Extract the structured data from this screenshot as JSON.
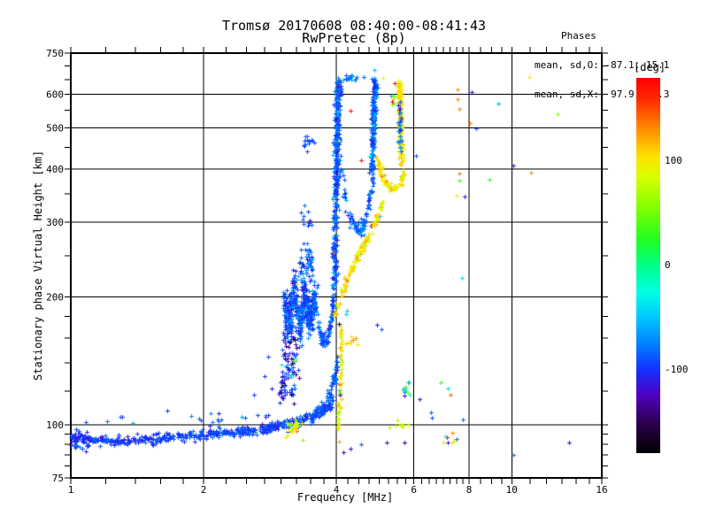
{
  "figure": {
    "title": "Tromsø 20170608 08:40:00-08:41:43",
    "subtitle": "RwPretec (8p)",
    "stats": {
      "heading": "Phases",
      "o_mode": "mean, sd,O: -87.1, 15.1",
      "x_mode": "mean, sd,X:  97.9, 20.3"
    },
    "colors": {
      "background": "#ffffff",
      "frame": "#000000",
      "text": "#000000"
    }
  },
  "chart_data": {
    "type": "scatter",
    "title": "Tromsø 20170608 08:40:00-08:41:43",
    "subtitle": "RwPretec (8p)",
    "xlabel": "Frequency [MHz]",
    "ylabel": "Stationary phase Virtual Height [km]",
    "x_scale": "log",
    "y_scale": "log",
    "xlim": [
      1,
      16
    ],
    "ylim": [
      75,
      750
    ],
    "x_major_ticks": [
      1,
      2,
      4,
      6,
      8,
      10,
      16
    ],
    "x_minor_ticks": [
      1.2,
      1.4,
      1.6,
      1.8,
      2.25,
      2.5,
      2.75,
      3,
      3.25,
      3.5,
      3.75,
      4.25,
      4.5,
      4.75,
      5,
      5.25,
      5.5,
      5.75,
      6.25,
      6.5,
      6.75,
      7,
      7.25,
      7.5,
      7.75,
      8.5,
      9,
      9.5,
      11,
      12,
      13,
      14,
      15
    ],
    "x_gridlines": [
      2,
      4,
      6,
      8,
      10
    ],
    "y_major_ticks": [
      75,
      100,
      200,
      300,
      400,
      500,
      600,
      750
    ],
    "y_minor_ticks": [
      80,
      85,
      90,
      95,
      120,
      140,
      160,
      180,
      250,
      350,
      450,
      550,
      650,
      700
    ],
    "y_gridlines": [
      100,
      200,
      300,
      400,
      500,
      600
    ],
    "grid": true,
    "marker": "plus",
    "seed": 1337,
    "colorbar": {
      "label": "[deg]",
      "range": [
        -180,
        180
      ],
      "tick_labels": [
        {
          "value": 100,
          "text": "100"
        },
        {
          "value": 0,
          "text": "0"
        },
        {
          "value": -100,
          "text": "-100"
        }
      ],
      "stops": [
        [
          -180,
          "#000000"
        ],
        [
          -150,
          "#2c0050"
        ],
        [
          -125,
          "#5000c0"
        ],
        [
          -100,
          "#1430ff"
        ],
        [
          -75,
          "#0080ff"
        ],
        [
          -50,
          "#00c8ff"
        ],
        [
          -25,
          "#00ffe0"
        ],
        [
          0,
          "#00ff88"
        ],
        [
          25,
          "#20ff20"
        ],
        [
          55,
          "#80ff00"
        ],
        [
          85,
          "#d8ff00"
        ],
        [
          105,
          "#ffe000"
        ],
        [
          130,
          "#ff9000"
        ],
        [
          160,
          "#ff2800"
        ],
        [
          180,
          "#ff0000"
        ]
      ]
    },
    "traces": [
      {
        "name": "E-region-band",
        "phase": -95,
        "phase_sd": 10,
        "n": 420,
        "h_jitter": 0.012,
        "f_jitter": 0.004,
        "outlier_prob": 0.004,
        "waypoints": [
          [
            1.0,
            93
          ],
          [
            1.25,
            91.5
          ],
          [
            1.6,
            93
          ],
          [
            2.0,
            95
          ],
          [
            2.4,
            96.5
          ],
          [
            2.75,
            98
          ],
          [
            2.95,
            99.5
          ]
        ]
      },
      {
        "name": "E-left-clump",
        "phase": -100,
        "phase_sd": 12,
        "n": 45,
        "h_jitter": 0.022,
        "f_jitter": 0.01,
        "outlier_prob": 0,
        "waypoints": [
          [
            1.0,
            90
          ],
          [
            1.05,
            93
          ],
          [
            1.1,
            91
          ]
        ]
      },
      {
        "name": "E-sparse-above",
        "phase": -90,
        "phase_sd": 18,
        "n": 22,
        "h_jitter": 0.02,
        "f_jitter": 0.06,
        "outlier_prob": 0.05,
        "waypoints": [
          [
            1.15,
            103
          ],
          [
            1.7,
            104
          ],
          [
            2.2,
            103
          ],
          [
            3.0,
            105
          ]
        ]
      },
      {
        "name": "E-rise",
        "phase": -92,
        "phase_sd": 12,
        "n": 150,
        "h_jitter": 0.014,
        "f_jitter": 0.004,
        "outlier_prob": 0.01,
        "waypoints": [
          [
            2.95,
            99.5
          ],
          [
            3.2,
            101.5
          ],
          [
            3.5,
            104
          ],
          [
            3.75,
            108
          ],
          [
            3.95,
            115
          ]
        ]
      },
      {
        "name": "E-rise-upper",
        "phase": -88,
        "phase_sd": 14,
        "n": 60,
        "h_jitter": 0.02,
        "f_jitter": 0.004,
        "outlier_prob": 0.01,
        "waypoints": [
          [
            3.6,
            107
          ],
          [
            3.8,
            114
          ],
          [
            3.95,
            127
          ],
          [
            4.02,
            140
          ]
        ]
      },
      {
        "name": "valley-column-1",
        "phase": -105,
        "phase_sd": 26,
        "n": 90,
        "h_jitter": 0.04,
        "f_jitter": 0.012,
        "outlier_prob": 0.04,
        "waypoints": [
          [
            3.0,
            112
          ],
          [
            3.05,
            130
          ],
          [
            3.1,
            150
          ],
          [
            3.08,
            168
          ],
          [
            3.12,
            184
          ]
        ]
      },
      {
        "name": "valley-column-2",
        "phase": -100,
        "phase_sd": 28,
        "n": 45,
        "h_jitter": 0.05,
        "f_jitter": 0.012,
        "outlier_prob": 0.05,
        "waypoints": [
          [
            3.18,
            115
          ],
          [
            3.22,
            135
          ],
          [
            3.2,
            155
          ],
          [
            3.25,
            175
          ]
        ]
      },
      {
        "name": "F1-dense-cluster",
        "phase": -88,
        "phase_sd": 15,
        "n": 430,
        "h_jitter": 0.05,
        "f_jitter": 0.006,
        "outlier_prob": 0.012,
        "waypoints": [
          [
            3.05,
            195
          ],
          [
            3.12,
            172
          ],
          [
            3.2,
            210
          ],
          [
            3.3,
            168
          ],
          [
            3.38,
            205
          ],
          [
            3.48,
            172
          ],
          [
            3.58,
            200
          ]
        ]
      },
      {
        "name": "F1-upper-clump",
        "phase": -85,
        "phase_sd": 15,
        "n": 60,
        "h_jitter": 0.04,
        "f_jitter": 0.01,
        "outlier_prob": 0.02,
        "waypoints": [
          [
            3.3,
            225
          ],
          [
            3.4,
            248
          ],
          [
            3.5,
            230
          ],
          [
            3.45,
            258
          ]
        ]
      },
      {
        "name": "clump-3p4MHz-460km",
        "phase": -85,
        "phase_sd": 12,
        "n": 14,
        "h_jitter": 0.02,
        "f_jitter": 0.01,
        "outlier_prob": 0,
        "waypoints": [
          [
            3.38,
            455
          ],
          [
            3.45,
            465
          ],
          [
            3.5,
            458
          ]
        ]
      },
      {
        "name": "clump-3p4MHz-300km",
        "phase": -88,
        "phase_sd": 12,
        "n": 10,
        "h_jitter": 0.03,
        "f_jitter": 0.008,
        "outlier_prob": 0,
        "waypoints": [
          [
            3.3,
            300
          ],
          [
            3.4,
            315
          ],
          [
            3.5,
            305
          ]
        ]
      },
      {
        "name": "V-cusp",
        "phase": -88,
        "phase_sd": 13,
        "n": 130,
        "h_jitter": 0.022,
        "f_jitter": 0.004,
        "outlier_prob": 0.008,
        "waypoints": [
          [
            3.55,
            200
          ],
          [
            3.68,
            162
          ],
          [
            3.78,
            155
          ],
          [
            3.88,
            172
          ],
          [
            3.96,
            210
          ]
        ]
      },
      {
        "name": "F-trace-O-column1",
        "phase": -85,
        "phase_sd": 16,
        "n": 430,
        "h_jitter": 0.02,
        "f_jitter": 0.007,
        "outlier_prob": 0.012,
        "waypoints": [
          [
            3.96,
            215
          ],
          [
            3.97,
            280
          ],
          [
            3.99,
            350
          ],
          [
            4.0,
            430
          ],
          [
            4.02,
            510
          ],
          [
            4.03,
            580
          ],
          [
            4.05,
            640
          ]
        ]
      },
      {
        "name": "column1-top-cap",
        "phase": -85,
        "phase_sd": 18,
        "n": 12,
        "h_jitter": 0.008,
        "f_jitter": 0.01,
        "outlier_prob": 0,
        "waypoints": [
          [
            4.22,
            655
          ],
          [
            4.3,
            660
          ],
          [
            4.38,
            652
          ]
        ]
      },
      {
        "name": "cusp-col1-col2",
        "phase": -85,
        "phase_sd": 14,
        "n": 110,
        "h_jitter": 0.02,
        "f_jitter": 0.005,
        "outlier_prob": 0.01,
        "waypoints": [
          [
            4.06,
            420
          ],
          [
            4.18,
            340
          ],
          [
            4.32,
            300
          ],
          [
            4.5,
            286
          ],
          [
            4.65,
            302
          ],
          [
            4.78,
            350
          ],
          [
            4.84,
            410
          ]
        ]
      },
      {
        "name": "F-trace-O-column2",
        "phase": -83,
        "phase_sd": 16,
        "n": 230,
        "h_jitter": 0.02,
        "f_jitter": 0.006,
        "outlier_prob": 0.02,
        "waypoints": [
          [
            4.82,
            400
          ],
          [
            4.84,
            470
          ],
          [
            4.86,
            540
          ],
          [
            4.88,
            600
          ],
          [
            4.9,
            645
          ]
        ]
      },
      {
        "name": "cusp-col2-col3-yellow",
        "phase": 98,
        "phase_sd": 13,
        "n": 80,
        "h_jitter": 0.015,
        "f_jitter": 0.005,
        "outlier_prob": 0.02,
        "waypoints": [
          [
            4.95,
            420
          ],
          [
            5.08,
            385
          ],
          [
            5.25,
            365
          ],
          [
            5.45,
            360
          ],
          [
            5.6,
            375
          ],
          [
            5.68,
            400
          ]
        ]
      },
      {
        "name": "F-trace-X-column3",
        "phase": 100,
        "phase_sd": 13,
        "n": 170,
        "h_jitter": 0.018,
        "f_jitter": 0.006,
        "outlier_prob": 0.03,
        "waypoints": [
          [
            5.62,
            420
          ],
          [
            5.6,
            480
          ],
          [
            5.58,
            540
          ],
          [
            5.57,
            590
          ],
          [
            5.55,
            635
          ]
        ]
      },
      {
        "name": "column3-blue-mix",
        "phase": -85,
        "phase_sd": 18,
        "n": 28,
        "h_jitter": 0.02,
        "f_jitter": 0.006,
        "outlier_prob": 0.02,
        "waypoints": [
          [
            5.6,
            430
          ],
          [
            5.58,
            500
          ],
          [
            5.57,
            560
          ]
        ]
      },
      {
        "name": "column3-topleft-mix",
        "phase": 60,
        "phase_sd": 90,
        "n": 8,
        "h_jitter": 0.02,
        "f_jitter": 0.006,
        "outlier_prob": 0,
        "waypoints": [
          [
            5.32,
            560
          ],
          [
            5.4,
            595
          ],
          [
            5.45,
            625
          ]
        ]
      },
      {
        "name": "X-trace-start-column",
        "phase": 98,
        "phase_sd": 18,
        "n": 60,
        "h_jitter": 0.02,
        "f_jitter": 0.005,
        "outlier_prob": 0.04,
        "waypoints": [
          [
            4.04,
            95
          ],
          [
            4.06,
            108
          ],
          [
            4.09,
            128
          ],
          [
            4.1,
            152
          ],
          [
            4.07,
            172
          ]
        ]
      },
      {
        "name": "X-trace-diagonal",
        "phase": 102,
        "phase_sd": 15,
        "n": 120,
        "h_jitter": 0.013,
        "f_jitter": 0.005,
        "outlier_prob": 0.03,
        "waypoints": [
          [
            3.98,
            182
          ],
          [
            4.15,
            208
          ],
          [
            4.33,
            232
          ],
          [
            4.52,
            256
          ],
          [
            4.72,
            278
          ],
          [
            4.92,
            303
          ],
          [
            5.08,
            332
          ]
        ]
      },
      {
        "name": "X-E-clump",
        "phase": 90,
        "phase_sd": 28,
        "n": 26,
        "h_jitter": 0.02,
        "f_jitter": 0.01,
        "outlier_prob": 0.06,
        "waypoints": [
          [
            3.08,
            97
          ],
          [
            3.18,
            100
          ],
          [
            3.3,
            99
          ]
        ]
      },
      {
        "name": "orange-clump-mid",
        "phase": 120,
        "phase_sd": 14,
        "n": 8,
        "h_jitter": 0.015,
        "f_jitter": 0.008,
        "outlier_prob": 0,
        "waypoints": [
          [
            4.25,
            156
          ],
          [
            4.35,
            160
          ],
          [
            4.45,
            157
          ]
        ]
      },
      {
        "name": "clump-6MHz-120km",
        "phase": -60,
        "phase_sd": 55,
        "n": 12,
        "h_jitter": 0.03,
        "f_jitter": 0.01,
        "outlier_prob": 0.1,
        "waypoints": [
          [
            5.65,
            118
          ],
          [
            5.85,
            122
          ],
          [
            6.1,
            118
          ]
        ]
      },
      {
        "name": "clump-6MHz-100km",
        "phase": 75,
        "phase_sd": 25,
        "n": 8,
        "h_jitter": 0.02,
        "f_jitter": 0.012,
        "outlier_prob": 0,
        "waypoints": [
          [
            5.3,
            100
          ],
          [
            5.7,
            99
          ],
          [
            6.05,
            101
          ]
        ]
      },
      {
        "name": "clump-7MHz-92km",
        "phase": 40,
        "phase_sd": 85,
        "n": 8,
        "h_jitter": 0.02,
        "f_jitter": 0.008,
        "outlier_prob": 0,
        "waypoints": [
          [
            7.05,
            92
          ],
          [
            7.2,
            93
          ],
          [
            7.45,
            91
          ]
        ]
      }
    ],
    "scatter_points": [
      [
        10.96,
        658,
        105
      ],
      [
        7.55,
        616,
        130
      ],
      [
        8.1,
        607,
        -120
      ],
      [
        7.55,
        585,
        130
      ],
      [
        7.6,
        555,
        132
      ],
      [
        9.3,
        570,
        -60
      ],
      [
        12.7,
        538,
        60
      ],
      [
        8.05,
        513,
        135
      ],
      [
        8.3,
        500,
        -95
      ],
      [
        10.1,
        408,
        -120
      ],
      [
        11.05,
        392,
        130
      ],
      [
        7.6,
        390,
        135
      ],
      [
        7.6,
        376,
        30
      ],
      [
        8.9,
        377,
        25
      ],
      [
        7.5,
        346,
        100
      ],
      [
        7.8,
        345,
        -110
      ],
      [
        7.7,
        222,
        -40
      ],
      [
        5.06,
        168,
        -85
      ],
      [
        6.6,
        104,
        -90
      ],
      [
        6.55,
        107,
        -85
      ],
      [
        13.5,
        91,
        -125
      ],
      [
        10.1,
        85,
        -85
      ],
      [
        5.2,
        91,
        -130
      ],
      [
        5.7,
        91,
        -140
      ],
      [
        7.75,
        103,
        -85
      ],
      [
        7.15,
        122,
        -40
      ],
      [
        7.25,
        118,
        140
      ],
      [
        4.95,
        172,
        -120
      ],
      [
        4.2,
        182,
        -45
      ],
      [
        4.22,
        186,
        -50
      ],
      [
        3.35,
        92,
        60
      ],
      [
        4.3,
        88,
        -120
      ],
      [
        4.55,
        90,
        -90
      ],
      [
        4.15,
        86,
        -130
      ],
      [
        4.62,
        660,
        -85
      ],
      [
        4.45,
        658,
        -80
      ],
      [
        5.1,
        656,
        95
      ],
      [
        4.3,
        550,
        175
      ],
      [
        4.55,
        420,
        170
      ],
      [
        2.75,
        130,
        -100
      ],
      [
        2.8,
        145,
        -95
      ],
      [
        2.85,
        122,
        -105
      ],
      [
        2.6,
        118,
        -98
      ],
      [
        6.05,
        430,
        -90
      ],
      [
        6.9,
        126,
        30
      ]
    ]
  }
}
